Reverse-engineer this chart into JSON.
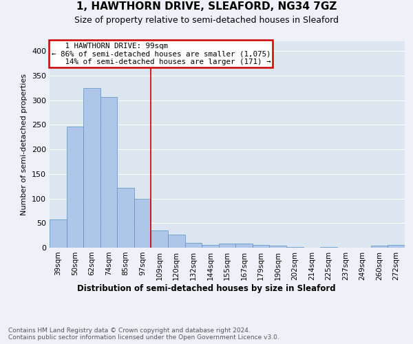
{
  "title": "1, HAWTHORN DRIVE, SLEAFORD, NG34 7GZ",
  "subtitle": "Size of property relative to semi-detached houses in Sleaford",
  "xlabel": "Distribution of semi-detached houses by size in Sleaford",
  "ylabel": "Number of semi-detached properties",
  "categories": [
    "39sqm",
    "50sqm",
    "62sqm",
    "74sqm",
    "85sqm",
    "97sqm",
    "109sqm",
    "120sqm",
    "132sqm",
    "144sqm",
    "155sqm",
    "167sqm",
    "179sqm",
    "190sqm",
    "202sqm",
    "214sqm",
    "225sqm",
    "237sqm",
    "249sqm",
    "260sqm",
    "272sqm"
  ],
  "values": [
    57,
    246,
    325,
    307,
    122,
    99,
    35,
    26,
    10,
    6,
    9,
    9,
    6,
    4,
    1,
    0,
    1,
    0,
    0,
    4,
    5
  ],
  "bar_color": "#aec6e8",
  "bar_edge_color": "#5a8fc0",
  "property_label": "1 HAWTHORN DRIVE: 99sqm",
  "pct_smaller": 86,
  "count_smaller": 1075,
  "pct_larger": 14,
  "count_larger": 171,
  "vline_x_index": 5.5,
  "annotation_box_color": "#cc0000",
  "background_color": "#eef2f8",
  "plot_bg_color": "#dce6f0",
  "grid_color": "#ffffff",
  "footer_text": "Contains HM Land Registry data © Crown copyright and database right 2024.\nContains public sector information licensed under the Open Government Licence v3.0.",
  "ylim": [
    0,
    420
  ],
  "yticks": [
    0,
    50,
    100,
    150,
    200,
    250,
    300,
    350,
    400
  ]
}
